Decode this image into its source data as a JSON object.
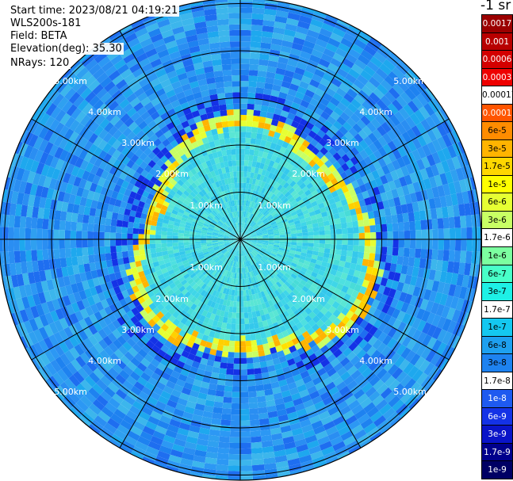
{
  "info": {
    "start_time": "Start time: 2023/08/21 04:19:21",
    "instrument": "WLS200s-181",
    "field": "Field: BETA",
    "elevation": "Elevation(deg): 35.30",
    "nrays": "NRays: 120"
  },
  "colorbar": {
    "unit": "-1 sr",
    "levels": [
      {
        "label": "0.0017",
        "color": "#9b0000",
        "text": "#ffffff"
      },
      {
        "label": "0.001",
        "color": "#b80000",
        "text": "#ffffff"
      },
      {
        "label": "0.0006",
        "color": "#d40000",
        "text": "#ffffff"
      },
      {
        "label": "0.0003",
        "color": "#ee0000",
        "text": "#ffffff"
      },
      {
        "label": "0.00017",
        "color": "#ffffff",
        "text": "#000000"
      },
      {
        "label": "0.0001",
        "color": "#ff5500",
        "text": "#ffffff"
      },
      {
        "label": "6e-5",
        "color": "#ff8c00",
        "text": "#000000"
      },
      {
        "label": "3e-5",
        "color": "#ffb400",
        "text": "#000000"
      },
      {
        "label": "1.7e-5",
        "color": "#ffd700",
        "text": "#000000"
      },
      {
        "label": "1e-5",
        "color": "#ffff00",
        "text": "#000000"
      },
      {
        "label": "6e-6",
        "color": "#e6ff33",
        "text": "#000000"
      },
      {
        "label": "3e-6",
        "color": "#c8ff64",
        "text": "#000000"
      },
      {
        "label": "1.7e-6",
        "color": "#ffffff",
        "text": "#000000"
      },
      {
        "label": "1e-6",
        "color": "#7cffa0",
        "text": "#000000"
      },
      {
        "label": "6e-7",
        "color": "#48ffc8",
        "text": "#000000"
      },
      {
        "label": "3e-7",
        "color": "#1ef0e6",
        "text": "#000000"
      },
      {
        "label": "1.7e-7",
        "color": "#ffffff",
        "text": "#000000"
      },
      {
        "label": "1e-7",
        "color": "#14c8f0",
        "text": "#000000"
      },
      {
        "label": "6e-8",
        "color": "#1ea0f0",
        "text": "#000000"
      },
      {
        "label": "3e-8",
        "color": "#1e82f0",
        "text": "#000000"
      },
      {
        "label": "1.7e-8",
        "color": "#ffffff",
        "text": "#000000"
      },
      {
        "label": "1e-8",
        "color": "#1e5af0",
        "text": "#ffffff"
      },
      {
        "label": "6e-9",
        "color": "#1432e6",
        "text": "#ffffff"
      },
      {
        "label": "3e-9",
        "color": "#0a14c8",
        "text": "#ffffff"
      },
      {
        "label": "1.7e-9",
        "color": "#00008c",
        "text": "#ffffff"
      },
      {
        "label": "1e-9",
        "color": "#000064",
        "text": "#ffffff"
      }
    ]
  },
  "plot": {
    "ring_km": [
      1,
      2,
      3,
      4,
      5
    ],
    "max_range_km": 5.1,
    "ring_labels": [
      "1.00km",
      "2.00km",
      "3.00km",
      "4.00km",
      "5.00km"
    ],
    "aerosol_ring_km": [
      2.35,
      3.1
    ],
    "background_color": "#2a8ef2",
    "inner_color": "#3fd6e8",
    "ring_color": "#ffe000"
  }
}
